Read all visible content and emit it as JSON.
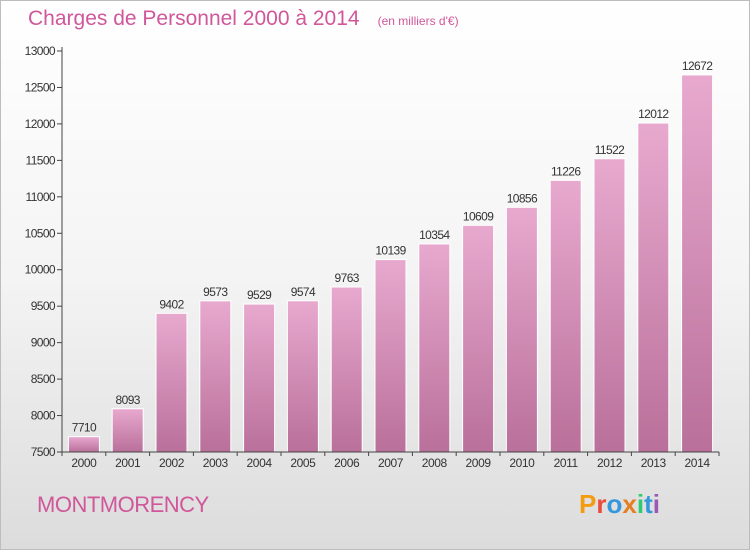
{
  "chart_data": {
    "type": "bar",
    "title": "Charges de Personnel 2000 à 2014",
    "subtitle": "(en milliers d'€)",
    "categories": [
      "2000",
      "2001",
      "2002",
      "2003",
      "2004",
      "2005",
      "2006",
      "2007",
      "2008",
      "2009",
      "2010",
      "2011",
      "2012",
      "2013",
      "2014"
    ],
    "values": [
      7710,
      8093,
      9402,
      9573,
      9529,
      9574,
      9763,
      10139,
      10354,
      10609,
      10856,
      11226,
      11522,
      12012,
      12672
    ],
    "ylim": [
      7500,
      13000
    ],
    "yticks": [
      7500,
      8000,
      8500,
      9000,
      9500,
      10000,
      10500,
      11000,
      11500,
      12000,
      12500,
      13000
    ],
    "grid": false,
    "bar_color_top": "#e8a9cf",
    "bar_color_bottom": "#b9709a",
    "axis_color": "#444444"
  },
  "place_name": "MONTMORENCY",
  "logo": {
    "text": "Proxiti",
    "colors": [
      "#f39c12",
      "#e74c3c",
      "#3498db",
      "#e67e22",
      "#2ecc71",
      "#3498db",
      "#9b59b6"
    ]
  }
}
